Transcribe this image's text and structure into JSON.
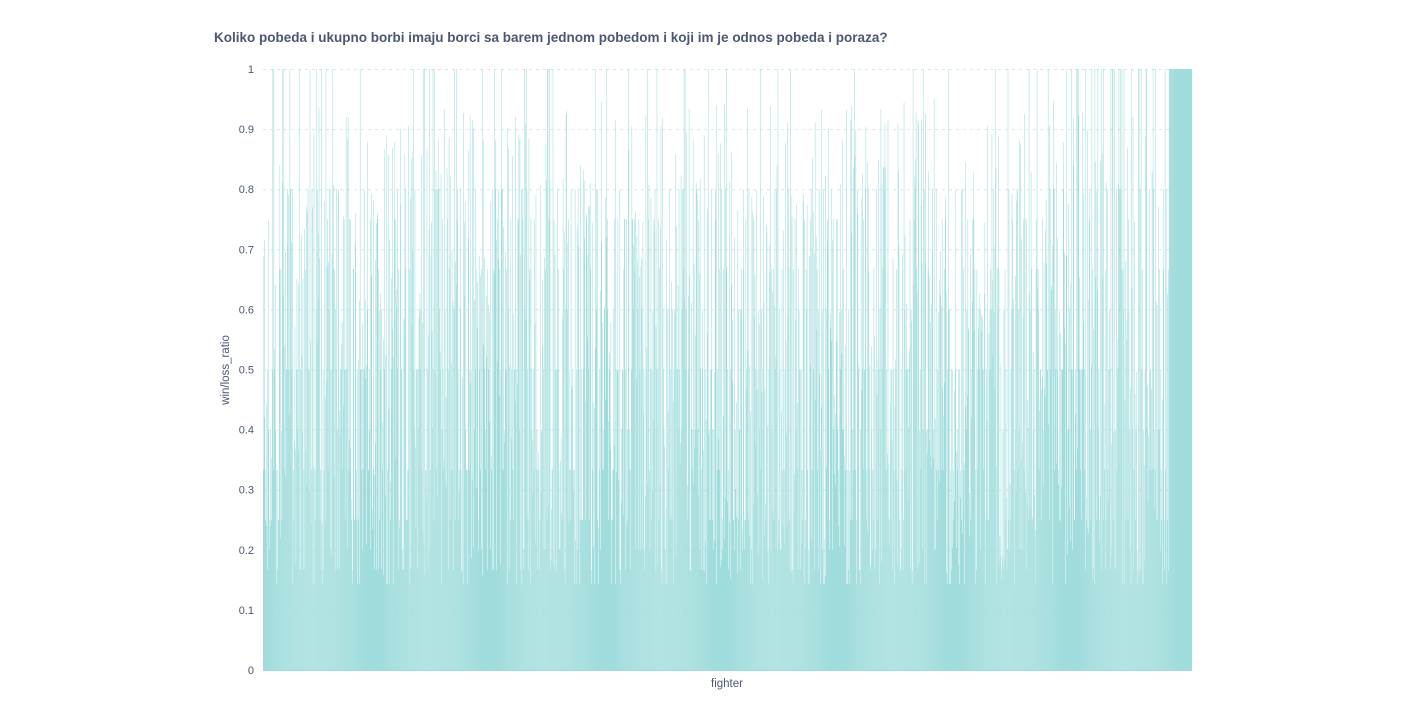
{
  "chart_data": {
    "type": "bar",
    "title": "Koliko pobeda i ukupno borbi imaju borci sa barem jednom pobedom i koji im je odnos pobeda i poraza?",
    "xlabel": "fighter",
    "ylabel": "win/loss_ratio",
    "ylim": [
      0,
      1
    ],
    "yticks": [
      "0",
      "0.1",
      "0.2",
      "0.3",
      "0.4",
      "0.5",
      "0.6",
      "0.7",
      "0.8",
      "0.9",
      "1"
    ],
    "grid": "horizontal-dashed",
    "legend": "none",
    "bar_color": "#a0dcdc",
    "bar_count": 1850,
    "bar_values_note": "win/loss ratio per fighter; dense bars, values concentrated at 1, 0.8, 0.75, 0.67, 0.6, 0.5, 0.4, 0.33, 0.25, 0.2 with a solid block of 1.0 at the far right"
  }
}
